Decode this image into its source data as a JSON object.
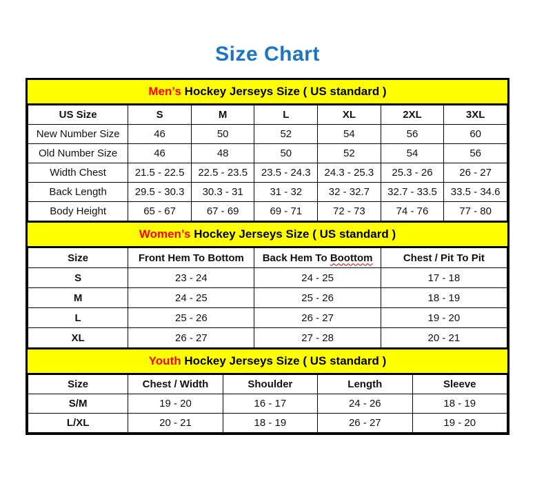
{
  "title": "Size Chart",
  "colors": {
    "title_blue": "#1B75C0",
    "section_band_yellow": "#FFFF00",
    "highlight_red": "#FF0000",
    "border_black": "#000000",
    "spellcheck_wavy_red": "#C00000"
  },
  "sections": [
    {
      "name": "men",
      "heading": {
        "highlight": "Men’s",
        "rest": " Hockey Jerseys Size ( US standard )"
      },
      "columns": [
        "US Size",
        "S",
        "M",
        "L",
        "XL",
        "2XL",
        "3XL"
      ],
      "rows": [
        {
          "label": "New Number Size",
          "values": [
            "46",
            "50",
            "52",
            "54",
            "56",
            "60"
          ]
        },
        {
          "label": "Old Number Size",
          "values": [
            "46",
            "48",
            "50",
            "52",
            "54",
            "56"
          ]
        },
        {
          "label": "Width Chest",
          "values": [
            "21.5 - 22.5",
            "22.5 - 23.5",
            "23.5 - 24.3",
            "24.3 - 25.3",
            "25.3 - 26",
            "26 - 27"
          ]
        },
        {
          "label": "Back Length",
          "values": [
            "29.5 - 30.3",
            "30.3 - 31",
            "31 - 32",
            "32 - 32.7",
            "32.7 - 33.5",
            "33.5 - 34.6"
          ]
        },
        {
          "label": "Body Height",
          "values": [
            "65 - 67",
            "67 - 69",
            "69 - 71",
            "72 - 73",
            "74 - 76",
            "77 - 80"
          ]
        }
      ]
    },
    {
      "name": "women",
      "heading": {
        "highlight": "Women’s",
        "rest": " Hockey Jerseys Size ( US standard )"
      },
      "columns": [
        {
          "text": "Size"
        },
        {
          "text": "Front Hem To Bottom"
        },
        {
          "prefix": "Back Hem To ",
          "word": "Boottom"
        },
        {
          "text": "Chest / Pit To Pit"
        }
      ],
      "rows": [
        {
          "label": "S",
          "values": [
            "23 - 24",
            "24 - 25",
            "17 - 18"
          ]
        },
        {
          "label": "M",
          "values": [
            "24 - 25",
            "25 - 26",
            "18 - 19"
          ]
        },
        {
          "label": "L",
          "values": [
            "25 - 26",
            "26 - 27",
            "19 - 20"
          ]
        },
        {
          "label": "XL",
          "values": [
            "26 - 27",
            "27 - 28",
            "20 - 21"
          ]
        }
      ]
    },
    {
      "name": "youth",
      "heading": {
        "highlight": "Youth",
        "rest": " Hockey Jerseys Size ( US standard )"
      },
      "columns": [
        "Size",
        "Chest / Width",
        "Shoulder",
        "Length",
        "Sleeve"
      ],
      "rows": [
        {
          "label": "S/M",
          "values": [
            "19 - 20",
            "16 - 17",
            "24 - 26",
            "18 - 19"
          ]
        },
        {
          "label": "L/XL",
          "values": [
            "20 - 21",
            "18 - 19",
            "26 - 27",
            "19 - 20"
          ]
        }
      ]
    }
  ]
}
